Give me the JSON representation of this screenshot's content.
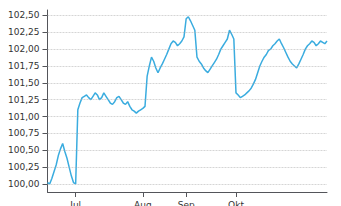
{
  "chart_data": {
    "type": "line",
    "x": [
      0,
      1,
      2,
      3,
      4,
      5,
      6,
      7,
      8,
      9,
      10,
      11,
      12,
      13,
      14,
      15,
      16,
      17,
      18,
      19,
      20,
      21,
      22,
      23,
      24,
      25,
      26,
      27,
      28,
      29,
      30,
      31,
      32,
      33,
      34,
      35,
      36,
      37,
      38,
      39,
      40,
      41,
      42,
      43,
      44,
      45,
      46,
      47,
      48,
      49,
      50,
      51,
      52,
      53,
      54,
      55,
      56,
      57,
      58,
      59,
      60,
      61,
      62,
      63,
      64,
      65,
      66,
      67,
      68,
      69,
      70,
      71,
      72,
      73,
      74,
      75,
      76,
      77,
      78,
      79,
      80,
      81,
      82,
      83,
      84,
      85,
      86,
      87,
      88,
      89,
      90,
      91,
      92,
      93,
      94,
      95,
      96,
      97,
      98,
      99,
      100,
      101,
      102,
      103,
      104,
      105,
      106,
      107,
      108,
      109,
      110,
      111,
      112,
      113,
      114,
      115,
      116,
      117,
      118,
      119,
      120,
      121,
      122,
      123,
      124,
      125,
      126,
      127,
      128,
      129
    ],
    "values": [
      100.02,
      100.0,
      100.08,
      100.18,
      100.28,
      100.42,
      100.52,
      100.6,
      100.48,
      100.38,
      100.25,
      100.12,
      100.02,
      100.0,
      101.1,
      101.2,
      101.28,
      101.3,
      101.32,
      101.28,
      101.25,
      101.3,
      101.35,
      101.32,
      101.25,
      101.28,
      101.35,
      101.3,
      101.25,
      101.2,
      101.18,
      101.22,
      101.28,
      101.3,
      101.25,
      101.2,
      101.18,
      101.22,
      101.15,
      101.1,
      101.08,
      101.05,
      101.08,
      101.1,
      101.12,
      101.15,
      101.6,
      101.75,
      101.88,
      101.82,
      101.72,
      101.65,
      101.72,
      101.78,
      101.85,
      101.92,
      102.0,
      102.08,
      102.12,
      102.1,
      102.05,
      102.08,
      102.12,
      102.18,
      102.45,
      102.48,
      102.42,
      102.35,
      102.28,
      101.88,
      101.82,
      101.78,
      101.72,
      101.68,
      101.65,
      101.7,
      101.75,
      101.8,
      101.85,
      101.92,
      102.0,
      102.05,
      102.1,
      102.15,
      102.28,
      102.22,
      102.15,
      101.35,
      101.32,
      101.28,
      101.3,
      101.32,
      101.35,
      101.38,
      101.42,
      101.48,
      101.55,
      101.65,
      101.75,
      101.82,
      101.88,
      101.92,
      101.98,
      102.0,
      102.05,
      102.08,
      102.12,
      102.15,
      102.08,
      102.02,
      101.95,
      101.88,
      101.82,
      101.78,
      101.75,
      101.72,
      101.78,
      101.85,
      101.92,
      102.0,
      102.05,
      102.08,
      102.12,
      102.1,
      102.05,
      102.08,
      102.12,
      102.1,
      102.08,
      102.12
    ],
    "color": "#3aacdf",
    "xlim": [
      0,
      129
    ],
    "xticks": [
      {
        "value": 13,
        "label": "Jul"
      },
      {
        "value": 44,
        "label": "Aug"
      },
      {
        "value": 64,
        "label": "Sep"
      },
      {
        "value": 87,
        "label": "Okt"
      }
    ],
    "ylim": [
      99.88,
      102.58
    ],
    "yticks": [
      {
        "value": 100.0,
        "label": "100,00"
      },
      {
        "value": 100.25,
        "label": "100,25"
      },
      {
        "value": 100.5,
        "label": "100,50"
      },
      {
        "value": 100.75,
        "label": "100,75"
      },
      {
        "value": 101.0,
        "label": "101,00"
      },
      {
        "value": 101.25,
        "label": "101,25"
      },
      {
        "value": 101.5,
        "label": "101,50"
      },
      {
        "value": 101.75,
        "label": "101,75"
      },
      {
        "value": 102.0,
        "label": "102,00"
      },
      {
        "value": 102.25,
        "label": "102,25"
      },
      {
        "value": 102.5,
        "label": "102,50"
      }
    ],
    "grid": true
  }
}
